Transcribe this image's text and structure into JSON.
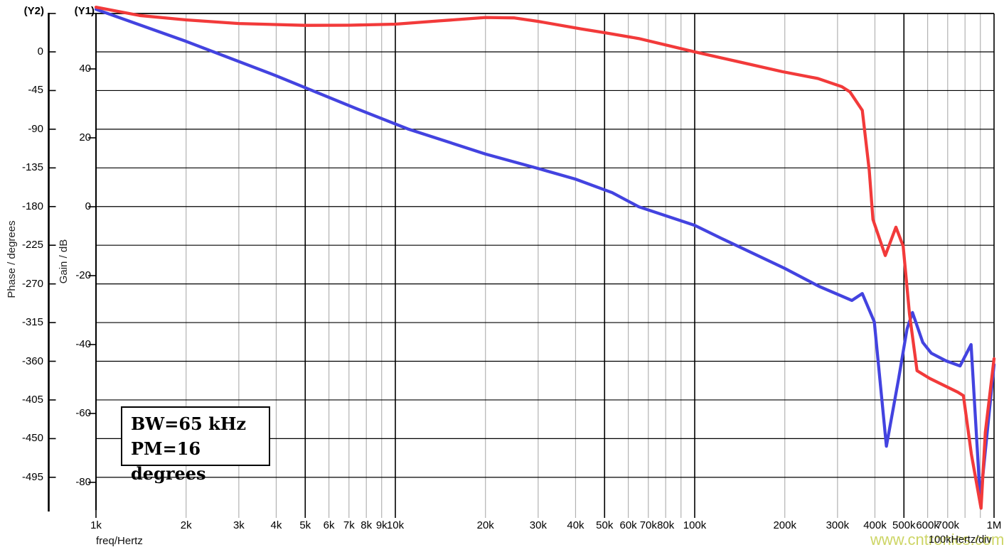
{
  "chart_data": {
    "type": "line",
    "title": "",
    "x_axis": {
      "label": "freq/Hertz",
      "scale": "log",
      "min": 1000,
      "max": 1000000,
      "ticks": [
        {
          "f": 1000,
          "label": "1k",
          "major": true
        },
        {
          "f": 2000,
          "label": "2k",
          "major": false
        },
        {
          "f": 3000,
          "label": "3k",
          "major": false
        },
        {
          "f": 4000,
          "label": "4k",
          "major": false
        },
        {
          "f": 5000,
          "label": "5k",
          "major": true
        },
        {
          "f": 6000,
          "label": "6k",
          "major": false
        },
        {
          "f": 7000,
          "label": "7k",
          "major": false
        },
        {
          "f": 8000,
          "label": "8k",
          "major": false
        },
        {
          "f": 9000,
          "label": "9k",
          "major": false
        },
        {
          "f": 10000,
          "label": "10k",
          "major": true
        },
        {
          "f": 20000,
          "label": "20k",
          "major": false
        },
        {
          "f": 30000,
          "label": "30k",
          "major": false
        },
        {
          "f": 40000,
          "label": "40k",
          "major": false
        },
        {
          "f": 50000,
          "label": "50k",
          "major": true
        },
        {
          "f": 60000,
          "label": "60k",
          "major": false
        },
        {
          "f": 70000,
          "label": "70k",
          "major": false
        },
        {
          "f": 80000,
          "label": "80k",
          "major": false
        },
        {
          "f": 90000,
          "label": "",
          "major": false
        },
        {
          "f": 100000,
          "label": "100k",
          "major": true
        },
        {
          "f": 200000,
          "label": "200k",
          "major": false
        },
        {
          "f": 300000,
          "label": "300k",
          "major": false
        },
        {
          "f": 400000,
          "label": "400k",
          "major": false
        },
        {
          "f": 500000,
          "label": "500k",
          "major": true
        },
        {
          "f": 600000,
          "label": "600k",
          "major": false
        },
        {
          "f": 700000,
          "label": "700k",
          "major": false
        },
        {
          "f": 800000,
          "label": "",
          "major": false
        },
        {
          "f": 900000,
          "label": "",
          "major": false
        },
        {
          "f": 1000000,
          "label": "1M",
          "major": true
        }
      ]
    },
    "y1_axis": {
      "name": "(Y1)",
      "title": "Gain / dB",
      "ticks": [
        40,
        20,
        0,
        -20,
        -40,
        -60,
        -80
      ]
    },
    "y2_axis": {
      "name": "(Y2)",
      "title": "Phase / degrees",
      "ticks": [
        0,
        -45,
        -90,
        -135,
        -180,
        -225,
        -270,
        -315,
        -360,
        -405,
        -450,
        -495
      ]
    },
    "grid": {
      "minor_color": "#b2b2b2",
      "major_color": "#000000"
    },
    "series": [
      {
        "name": "gain",
        "axis": "y1",
        "color": "#4343e0",
        "points": [
          [
            1000,
            57.3
          ],
          [
            2000,
            48
          ],
          [
            4000,
            38
          ],
          [
            7400,
            28.5
          ],
          [
            11000,
            22.6
          ],
          [
            20000,
            15.3
          ],
          [
            30000,
            11.1
          ],
          [
            40000,
            8
          ],
          [
            53000,
            4.1
          ],
          [
            65000,
            0
          ],
          [
            100000,
            -5.4
          ],
          [
            125000,
            -9.5
          ],
          [
            200000,
            -17.9
          ],
          [
            260000,
            -23.1
          ],
          [
            335000,
            -27.2
          ],
          [
            363000,
            -25.2
          ],
          [
            398000,
            -33.4
          ],
          [
            437000,
            -69.5
          ],
          [
            480000,
            -49.9
          ],
          [
            512000,
            -35.5
          ],
          [
            534000,
            -30.7
          ],
          [
            578000,
            -39.4
          ],
          [
            617000,
            -42.5
          ],
          [
            690000,
            -44.7
          ],
          [
            770000,
            -46.2
          ],
          [
            838000,
            -40
          ],
          [
            900000,
            -85.3
          ],
          [
            1000000,
            -45.8
          ]
        ]
      },
      {
        "name": "phase",
        "axis": "y2",
        "color": "#f23a3a",
        "points": [
          [
            1000,
            52
          ],
          [
            1400,
            42.3
          ],
          [
            2000,
            37.2
          ],
          [
            3000,
            33
          ],
          [
            5000,
            30.8
          ],
          [
            7000,
            31
          ],
          [
            10000,
            32.2
          ],
          [
            14000,
            36
          ],
          [
            20000,
            40
          ],
          [
            25000,
            39.5
          ],
          [
            30000,
            35.5
          ],
          [
            42000,
            26.5
          ],
          [
            50000,
            22.3
          ],
          [
            65000,
            15.5
          ],
          [
            100000,
            0
          ],
          [
            140000,
            -11.5
          ],
          [
            196000,
            -23
          ],
          [
            258000,
            -31
          ],
          [
            310000,
            -40.5
          ],
          [
            330000,
            -46.5
          ],
          [
            363000,
            -68
          ],
          [
            383000,
            -138
          ],
          [
            394000,
            -195
          ],
          [
            433000,
            -237
          ],
          [
            470000,
            -204
          ],
          [
            497000,
            -226
          ],
          [
            522000,
            -305
          ],
          [
            553000,
            -371
          ],
          [
            610000,
            -380
          ],
          [
            757000,
            -396
          ],
          [
            790000,
            -400
          ],
          [
            840000,
            -468
          ],
          [
            905000,
            -531
          ],
          [
            935000,
            -443
          ],
          [
            1000000,
            -357
          ]
        ]
      }
    ],
    "annotation": {
      "line1": "BW=65 kHz",
      "line2": "PM=16 degrees"
    }
  },
  "footer": {
    "x_axis_label": "freq/Hertz",
    "div_label": "100kHertz/div",
    "watermark": "www.cntronics.com"
  }
}
